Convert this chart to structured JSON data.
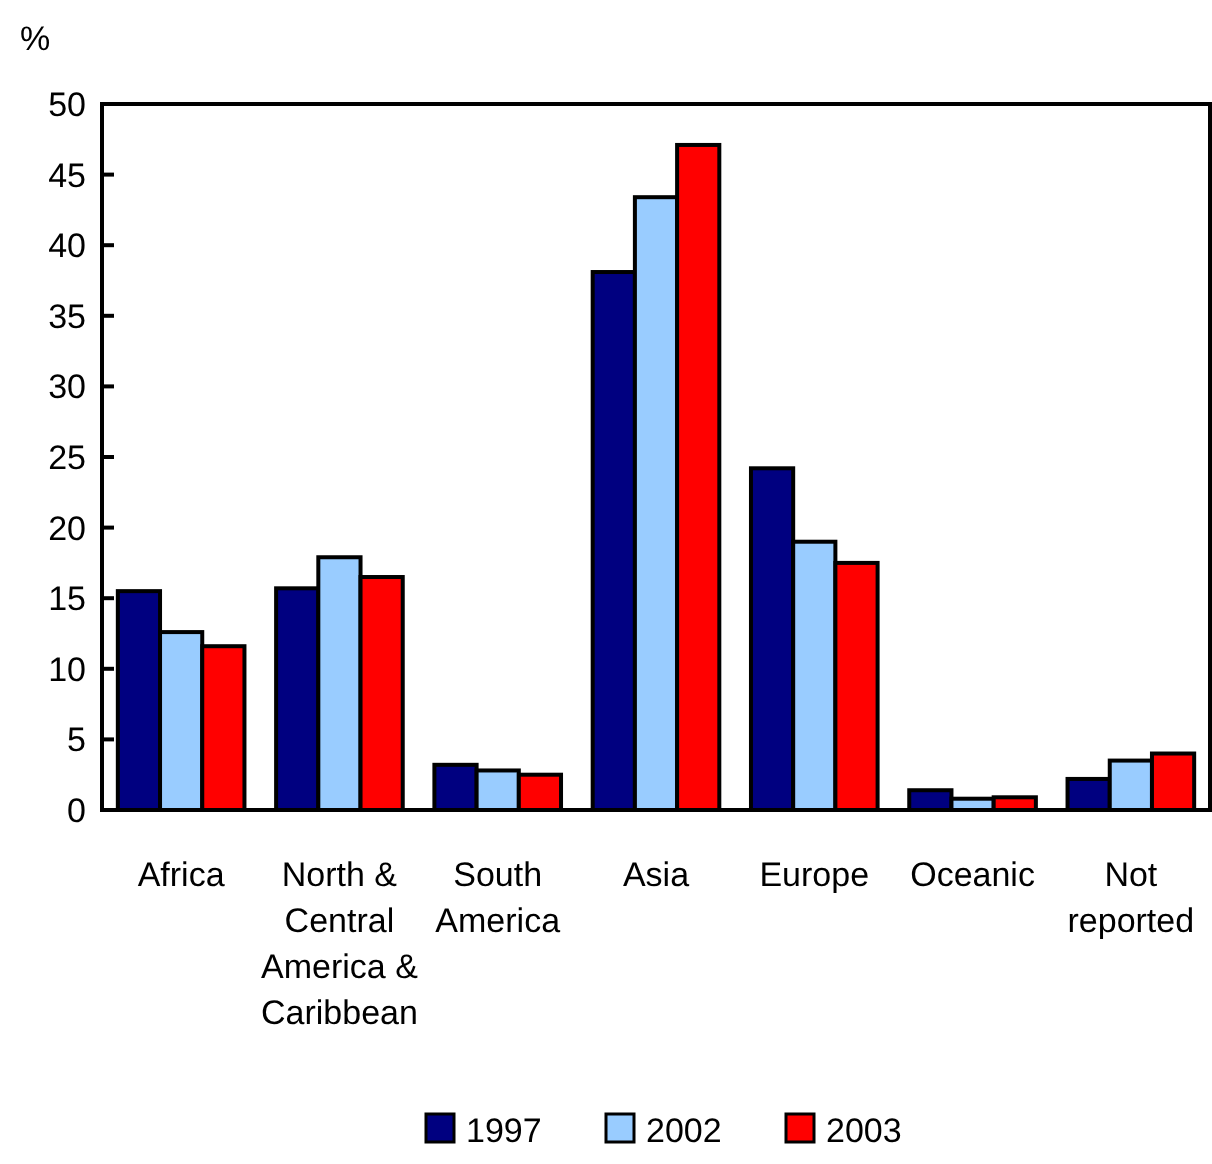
{
  "chart_data": {
    "type": "bar",
    "ylabel": "%",
    "categories": [
      "Africa",
      "North & Central America & Caribbean",
      "South America",
      "Asia",
      "Europe",
      "Oceanic",
      "Not reported"
    ],
    "series": [
      {
        "name": "1997",
        "color": "#000080",
        "values": [
          15.5,
          15.7,
          3.2,
          38.1,
          24.2,
          1.4,
          2.2
        ]
      },
      {
        "name": "2002",
        "color": "#99ccff",
        "values": [
          12.6,
          17.9,
          2.8,
          43.4,
          19.0,
          0.8,
          3.5
        ]
      },
      {
        "name": "2003",
        "color": "#ff0000",
        "values": [
          11.6,
          16.5,
          2.5,
          47.1,
          17.5,
          0.9,
          4.0
        ]
      }
    ],
    "ylim": [
      0,
      50
    ],
    "yticks": [
      0,
      5,
      10,
      15,
      20,
      25,
      30,
      35,
      40,
      45,
      50
    ],
    "grid": false,
    "legend": "bottom"
  }
}
